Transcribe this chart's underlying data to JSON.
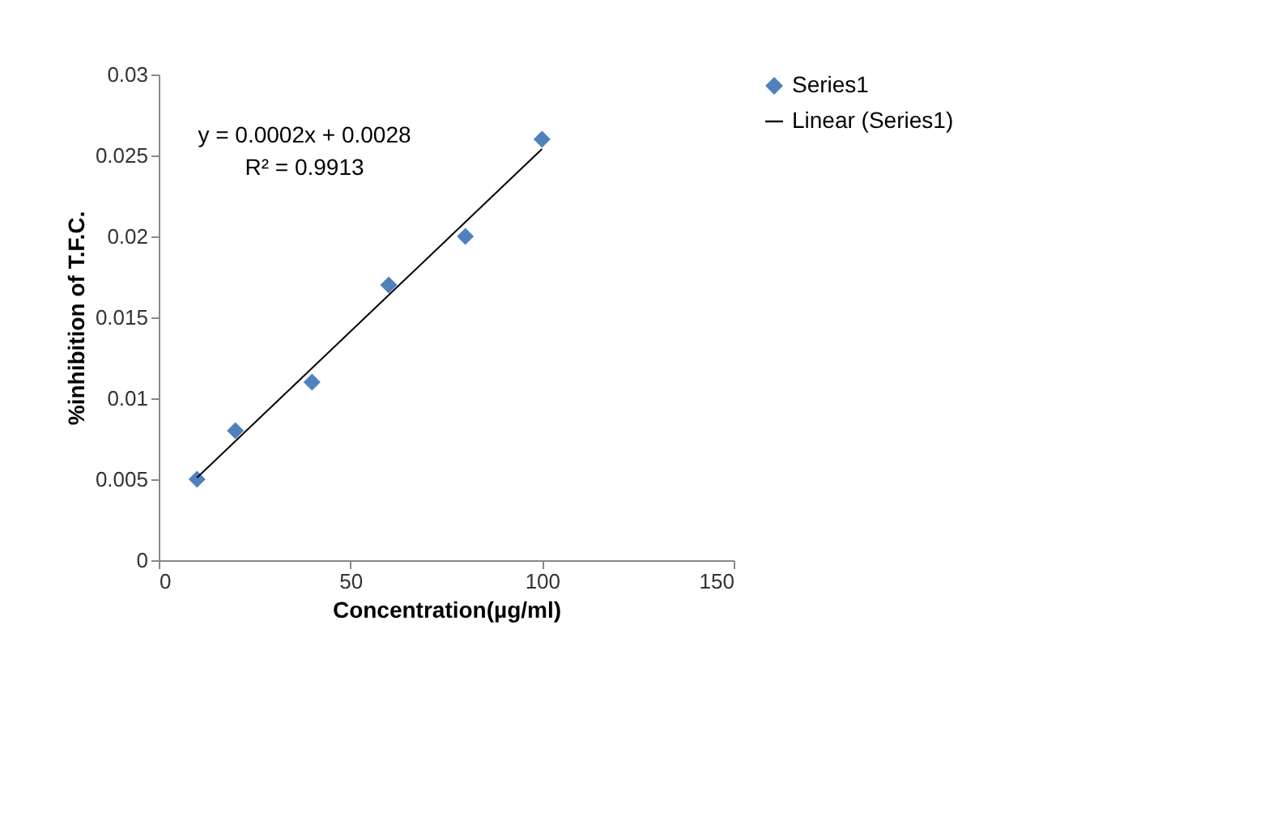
{
  "chart_data": {
    "type": "scatter",
    "xlabel": "Concentration(µg/ml)",
    "ylabel": "%inhibition of T.F.C.",
    "xlim": [
      0,
      150
    ],
    "xticks": [
      0,
      50,
      100,
      150
    ],
    "ylim": [
      0,
      0.03
    ],
    "yticks": [
      0,
      0.005,
      0.01,
      0.015,
      0.02,
      0.025,
      0.03
    ],
    "grid": false,
    "legend": "right",
    "marker": "diamond",
    "series": [
      {
        "name": "Series1",
        "color": "#4f81bd",
        "x": [
          10,
          20,
          40,
          60,
          80,
          100
        ],
        "values": [
          0.005,
          0.008,
          0.011,
          0.017,
          0.02,
          0.026
        ]
      },
      {
        "name": "Linear (Series1)",
        "color": "#000000",
        "type": "line",
        "line_style": "solid",
        "marker": "none",
        "x": [
          10,
          100
        ],
        "values": [
          0.0051,
          0.0254
        ]
      }
    ],
    "annotations": [
      "y = 0.0002x + 0.0028",
      "R² = 0.9913"
    ]
  }
}
